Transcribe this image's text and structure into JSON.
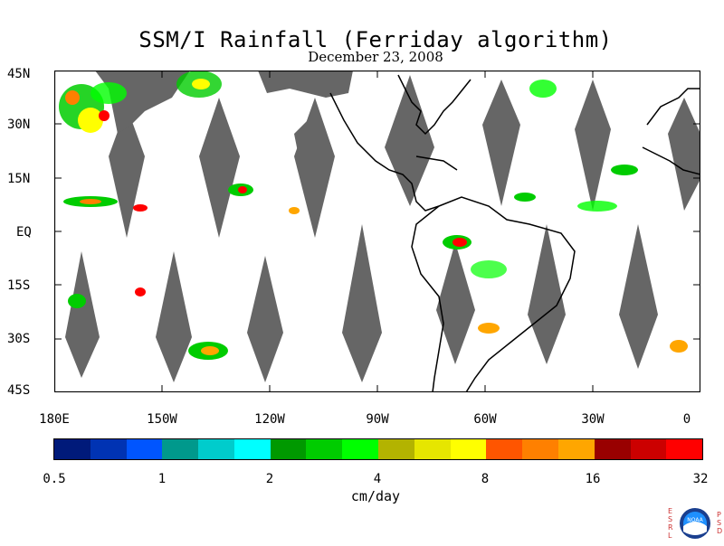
{
  "title": "SSM/I Rainfall (Ferriday algorithm)",
  "date": "December 23, 2008",
  "latitude_labels": [
    "45N",
    "30N",
    "15N",
    "EQ",
    "15S",
    "30S",
    "45S"
  ],
  "longitude_labels": [
    "180E",
    "150W",
    "120W",
    "90W",
    "60W",
    "30W",
    "0"
  ],
  "colorbar": {
    "colors": [
      "#001a7a",
      "#0033b3",
      "#0055ff",
      "#00998c",
      "#00cccc",
      "#00ffff",
      "#009900",
      "#00cc00",
      "#00ff00",
      "#b3b300",
      "#e6e600",
      "#ffff00",
      "#ff5500",
      "#ff8000",
      "#ffa600",
      "#990000",
      "#cc0000",
      "#ff0000"
    ],
    "tick_labels": [
      "0.5",
      "1",
      "2",
      "4",
      "8",
      "16",
      "32"
    ],
    "units": "cm/day"
  },
  "logo": {
    "left_letters": "ESRL",
    "right_letters": "PSD",
    "center_text": "NOAA"
  }
}
